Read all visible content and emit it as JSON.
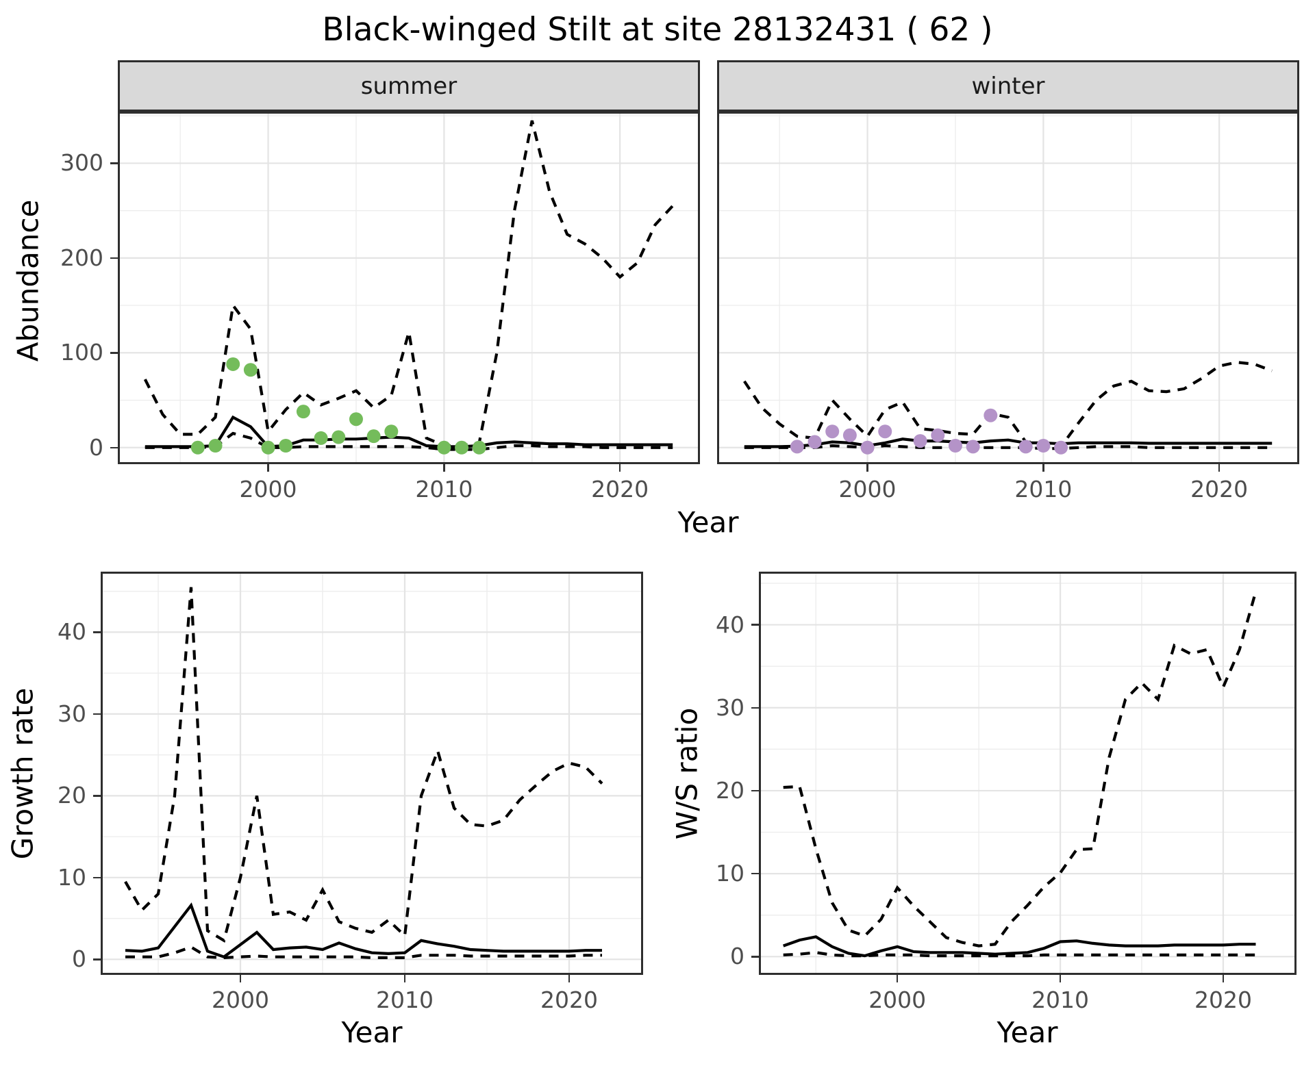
{
  "title": "Black-winged Stilt at site 28132431 ( 62 )",
  "facets": {
    "summer_label": "summer",
    "winter_label": "winter"
  },
  "axis_titles": {
    "top_y": "Abundance",
    "top_x": "Year",
    "bottom_left_y": "Growth rate",
    "bottom_left_x": "Year",
    "bottom_right_y": "W/S ratio",
    "bottom_right_x": "Year"
  },
  "colors": {
    "summer_point": "#74BC5B",
    "winter_point": "#B493C8",
    "line": "#000000",
    "strip_bg": "#D9D9D9",
    "grid_major": "#E4E4E4",
    "grid_minor": "#EDEDED",
    "panel_border": "#2E2E2E",
    "tick_text": "#4D4D4D"
  },
  "chart_data": [
    {
      "id": "summer-abundance",
      "type": "line",
      "facet": "summer",
      "title": "summer",
      "xlabel": "Year",
      "ylabel": "Abundance",
      "xlim": [
        1991.45,
        2024.55
      ],
      "ylim": [
        -17.5,
        354.5
      ],
      "x_major": [
        2000,
        2010,
        2020
      ],
      "x_minor": [
        1995,
        2005,
        2015
      ],
      "y_major": [
        0,
        100,
        200,
        300
      ],
      "y_minor": [
        50,
        150,
        250,
        350
      ],
      "x_tick_labels": [
        "2000",
        "2010",
        "2020"
      ],
      "y_tick_labels": [
        "0",
        "100",
        "200",
        "300"
      ],
      "series": [
        {
          "name": "upper-ci",
          "style": "dashed",
          "color": "#000000",
          "x": [
            1993,
            1994,
            1995,
            1996,
            1997,
            1998,
            1999,
            2000,
            2001,
            2002,
            2003,
            2004,
            2005,
            2006,
            2007,
            2008,
            2009,
            2010,
            2011,
            2012,
            2013,
            2014,
            2015,
            2016,
            2017,
            2018,
            2019,
            2020,
            2021,
            2022,
            2023
          ],
          "y": [
            72,
            35,
            14,
            14,
            32,
            150,
            125,
            17,
            40,
            58,
            45,
            52,
            60,
            42,
            55,
            122,
            10,
            2,
            2,
            5,
            100,
            250,
            345,
            270,
            225,
            215,
            200,
            180,
            195,
            235,
            255
          ]
        },
        {
          "name": "lower-ci",
          "style": "dashed",
          "color": "#000000",
          "x": [
            1993,
            1994,
            1995,
            1996,
            1997,
            1998,
            1999,
            2000,
            2001,
            2002,
            2003,
            2004,
            2005,
            2006,
            2007,
            2008,
            2009,
            2010,
            2011,
            2012,
            2013,
            2014,
            2015,
            2016,
            2017,
            2018,
            2019,
            2020,
            2021,
            2022,
            2023
          ],
          "y": [
            0,
            0,
            0,
            0,
            1,
            15,
            10,
            0,
            0,
            1,
            1,
            1,
            1,
            1,
            1,
            1,
            0,
            -2,
            -2,
            -2,
            0,
            2,
            2,
            1,
            1,
            1,
            0,
            0,
            0,
            0,
            0
          ]
        },
        {
          "name": "median",
          "style": "solid",
          "color": "#000000",
          "x": [
            1993,
            1994,
            1995,
            1996,
            1997,
            1998,
            1999,
            2000,
            2001,
            2002,
            2003,
            2004,
            2005,
            2006,
            2007,
            2008,
            2009,
            2010,
            2011,
            2012,
            2013,
            2014,
            2015,
            2016,
            2017,
            2018,
            2019,
            2020,
            2021,
            2022,
            2023
          ],
          "y": [
            1,
            1,
            1,
            1,
            2,
            32,
            22,
            1,
            2,
            8,
            8,
            9,
            9,
            10,
            11,
            10,
            2,
            1,
            1,
            2,
            5,
            6,
            5,
            4,
            4,
            3,
            3,
            3,
            3,
            3,
            3
          ]
        },
        {
          "name": "observed",
          "style": "points",
          "color": "#74BC5B",
          "x": [
            1996,
            1997,
            1998,
            1999,
            2000,
            2001,
            2002,
            2003,
            2004,
            2005,
            2006,
            2007,
            2010,
            2011,
            2012
          ],
          "y": [
            0,
            2,
            88,
            82,
            0,
            2,
            38,
            10,
            11,
            30,
            12,
            17,
            0,
            0,
            0
          ]
        }
      ]
    },
    {
      "id": "winter-abundance",
      "type": "line",
      "facet": "winter",
      "title": "winter",
      "xlabel": "Year",
      "ylabel": "Abundance",
      "xlim": [
        1991.45,
        2024.55
      ],
      "ylim": [
        -17.5,
        354.5
      ],
      "x_major": [
        2000,
        2010,
        2020
      ],
      "x_minor": [
        1995,
        2005,
        2015
      ],
      "y_major": [
        0,
        100,
        200,
        300
      ],
      "y_minor": [
        50,
        150,
        250,
        350
      ],
      "x_tick_labels": [
        "2000",
        "2010",
        "2020"
      ],
      "y_tick_labels": [],
      "series": [
        {
          "name": "upper-ci",
          "style": "dashed",
          "color": "#000000",
          "x": [
            1993,
            1994,
            1995,
            1996,
            1997,
            1998,
            1999,
            2000,
            2001,
            2002,
            2003,
            2004,
            2005,
            2006,
            2007,
            2008,
            2009,
            2010,
            2011,
            2012,
            2013,
            2014,
            2015,
            2016,
            2017,
            2018,
            2019,
            2020,
            2021,
            2022,
            2023
          ],
          "y": [
            70,
            42,
            25,
            12,
            10,
            50,
            30,
            12,
            40,
            48,
            20,
            18,
            15,
            14,
            36,
            32,
            6,
            5,
            1,
            26,
            50,
            65,
            70,
            60,
            59,
            62,
            73,
            86,
            90,
            88,
            81
          ]
        },
        {
          "name": "lower-ci",
          "style": "dashed",
          "color": "#000000",
          "x": [
            1993,
            1994,
            1995,
            1996,
            1997,
            1998,
            1999,
            2000,
            2001,
            2002,
            2003,
            2004,
            2005,
            2006,
            2007,
            2008,
            2009,
            2010,
            2011,
            2012,
            2013,
            2014,
            2015,
            2016,
            2017,
            2018,
            2019,
            2020,
            2021,
            2022,
            2023
          ],
          "y": [
            0,
            0,
            0,
            0,
            0,
            2,
            1,
            0,
            2,
            1,
            0,
            0,
            0,
            0,
            0,
            0,
            0,
            -1,
            -1,
            0,
            1,
            1,
            1,
            0,
            0,
            0,
            0,
            0,
            0,
            0,
            0
          ]
        },
        {
          "name": "median",
          "style": "solid",
          "color": "#000000",
          "x": [
            1993,
            1994,
            1995,
            1996,
            1997,
            1998,
            1999,
            2000,
            2001,
            2002,
            2003,
            2004,
            2005,
            2006,
            2007,
            2008,
            2009,
            2010,
            2011,
            2012,
            2013,
            2014,
            2015,
            2016,
            2017,
            2018,
            2019,
            2020,
            2021,
            2022,
            2023
          ],
          "y": [
            1,
            1,
            1,
            1.5,
            3,
            6,
            5,
            2,
            5,
            9,
            7,
            7,
            6,
            5,
            7,
            8,
            5,
            5,
            4,
            5,
            5,
            5,
            5,
            4.5,
            4.5,
            4.5,
            4.5,
            4.5,
            4.5,
            4.5,
            4.5
          ]
        },
        {
          "name": "observed",
          "style": "points",
          "color": "#B493C8",
          "x": [
            1996,
            1997,
            1998,
            1999,
            2000,
            2001,
            2003,
            2004,
            2005,
            2006,
            2007,
            2009,
            2010,
            2011
          ],
          "y": [
            1,
            6,
            17,
            13,
            0,
            17,
            7,
            13,
            2,
            1,
            34,
            1,
            2,
            0
          ]
        }
      ]
    },
    {
      "id": "growth-rate",
      "type": "line",
      "facet": "",
      "title": "",
      "xlabel": "Year",
      "ylabel": "Growth rate",
      "xlim": [
        1991.5,
        2024.5
      ],
      "ylim": [
        -1.9,
        47.4
      ],
      "x_major": [
        2000,
        2010,
        2020
      ],
      "x_minor": [
        1995,
        2005,
        2015
      ],
      "y_major": [
        0,
        10,
        20,
        30,
        40
      ],
      "y_minor": [
        5,
        15,
        25,
        35,
        45
      ],
      "x_tick_labels": [
        "2000",
        "2010",
        "2020"
      ],
      "y_tick_labels": [
        "0",
        "10",
        "20",
        "30",
        "40"
      ],
      "series": [
        {
          "name": "upper-ci",
          "style": "dashed",
          "color": "#000000",
          "x": [
            1993,
            1994,
            1995,
            1996,
            1997,
            1998,
            1999,
            2000,
            2001,
            2002,
            2003,
            2004,
            2005,
            2006,
            2007,
            2008,
            2009,
            2010,
            2011,
            2012,
            2013,
            2014,
            2015,
            2016,
            2017,
            2018,
            2019,
            2020,
            2021,
            2022
          ],
          "y": [
            9.5,
            6.0,
            8.0,
            20,
            45.5,
            3.5,
            2.3,
            10,
            20,
            5.5,
            5.8,
            4.8,
            8.5,
            4.6,
            3.8,
            3.3,
            4.8,
            2.9,
            20,
            25.5,
            18.5,
            16.5,
            16.3,
            17,
            19.5,
            21.3,
            23,
            24,
            23.5,
            21.5
          ]
        },
        {
          "name": "lower-ci",
          "style": "dashed",
          "color": "#000000",
          "x": [
            1993,
            1994,
            1995,
            1996,
            1997,
            1998,
            1999,
            2000,
            2001,
            2002,
            2003,
            2004,
            2005,
            2006,
            2007,
            2008,
            2009,
            2010,
            2011,
            2012,
            2013,
            2014,
            2015,
            2016,
            2017,
            2018,
            2019,
            2020,
            2021,
            2022
          ],
          "y": [
            0.3,
            0.3,
            0.3,
            0.8,
            1.5,
            0.3,
            0.2,
            0.3,
            0.4,
            0.3,
            0.3,
            0.3,
            0.3,
            0.3,
            0.3,
            0.2,
            0.2,
            0.2,
            0.5,
            0.5,
            0.5,
            0.4,
            0.4,
            0.4,
            0.4,
            0.4,
            0.4,
            0.4,
            0.5,
            0.5
          ]
        },
        {
          "name": "median",
          "style": "solid",
          "color": "#000000",
          "x": [
            1993,
            1994,
            1995,
            1996,
            1997,
            1998,
            1999,
            2000,
            2001,
            2002,
            2003,
            2004,
            2005,
            2006,
            2007,
            2008,
            2009,
            2010,
            2011,
            2012,
            2013,
            2014,
            2015,
            2016,
            2017,
            2018,
            2019,
            2020,
            2021,
            2022
          ],
          "y": [
            1.1,
            1.0,
            1.4,
            4.0,
            6.6,
            1.0,
            0.3,
            1.8,
            3.3,
            1.2,
            1.4,
            1.5,
            1.2,
            2.0,
            1.3,
            0.8,
            0.7,
            0.8,
            2.3,
            1.9,
            1.6,
            1.2,
            1.1,
            1.0,
            1.0,
            1.0,
            1.0,
            1.0,
            1.1,
            1.1
          ]
        }
      ]
    },
    {
      "id": "ws-ratio",
      "type": "line",
      "facet": "",
      "title": "",
      "xlabel": "Year",
      "ylabel": "W/S ratio",
      "xlim": [
        1991.5,
        2024.5
      ],
      "ylim": [
        -2.2,
        46.4
      ],
      "x_major": [
        2000,
        2010,
        2020
      ],
      "x_minor": [
        1995,
        2005,
        2015
      ],
      "y_major": [
        0,
        10,
        20,
        30,
        40
      ],
      "y_minor": [
        5,
        15,
        25,
        35,
        45
      ],
      "x_tick_labels": [
        "2000",
        "2010",
        "2020"
      ],
      "y_tick_labels": [
        "0",
        "10",
        "20",
        "30",
        "40"
      ],
      "series": [
        {
          "name": "upper-ci",
          "style": "dashed",
          "color": "#000000",
          "x": [
            1993,
            1994,
            1995,
            1996,
            1997,
            1998,
            1999,
            2000,
            2001,
            2002,
            2003,
            2004,
            2005,
            2006,
            2007,
            2008,
            2009,
            2010,
            2011,
            2012,
            2013,
            2014,
            2015,
            2016,
            2017,
            2018,
            2019,
            2020,
            2021,
            2022
          ],
          "y": [
            20.4,
            20.5,
            13,
            6.5,
            3.2,
            2.5,
            4.5,
            8.3,
            6.1,
            4.2,
            2.3,
            1.7,
            1.3,
            1.5,
            4.2,
            6.2,
            8.4,
            10.1,
            12.9,
            13,
            24,
            31,
            33,
            31,
            37.5,
            36.5,
            37,
            32.5,
            37,
            44
          ]
        },
        {
          "name": "lower-ci",
          "style": "dashed",
          "color": "#000000",
          "x": [
            1993,
            1994,
            1995,
            1996,
            1997,
            1998,
            1999,
            2000,
            2001,
            2002,
            2003,
            2004,
            2005,
            2006,
            2007,
            2008,
            2009,
            2010,
            2011,
            2012,
            2013,
            2014,
            2015,
            2016,
            2017,
            2018,
            2019,
            2020,
            2021,
            2022
          ],
          "y": [
            0.2,
            0.3,
            0.5,
            0.2,
            0.1,
            0.1,
            0.2,
            0.2,
            0.2,
            0.1,
            0.1,
            0.1,
            0.1,
            0.1,
            0.1,
            0.1,
            0.2,
            0.2,
            0.2,
            0.2,
            0.2,
            0.2,
            0.2,
            0.2,
            0.2,
            0.2,
            0.2,
            0.2,
            0.2,
            0.2
          ]
        },
        {
          "name": "median",
          "style": "solid",
          "color": "#000000",
          "x": [
            1993,
            1994,
            1995,
            1996,
            1997,
            1998,
            1999,
            2000,
            2001,
            2002,
            2003,
            2004,
            2005,
            2006,
            2007,
            2008,
            2009,
            2010,
            2011,
            2012,
            2013,
            2014,
            2015,
            2016,
            2017,
            2018,
            2019,
            2020,
            2021,
            2022
          ],
          "y": [
            1.3,
            2.0,
            2.4,
            1.2,
            0.4,
            0.1,
            0.7,
            1.2,
            0.6,
            0.5,
            0.5,
            0.5,
            0.4,
            0.3,
            0.4,
            0.5,
            1.0,
            1.8,
            1.9,
            1.6,
            1.4,
            1.3,
            1.3,
            1.3,
            1.4,
            1.4,
            1.4,
            1.4,
            1.5,
            1.5
          ]
        }
      ]
    }
  ]
}
